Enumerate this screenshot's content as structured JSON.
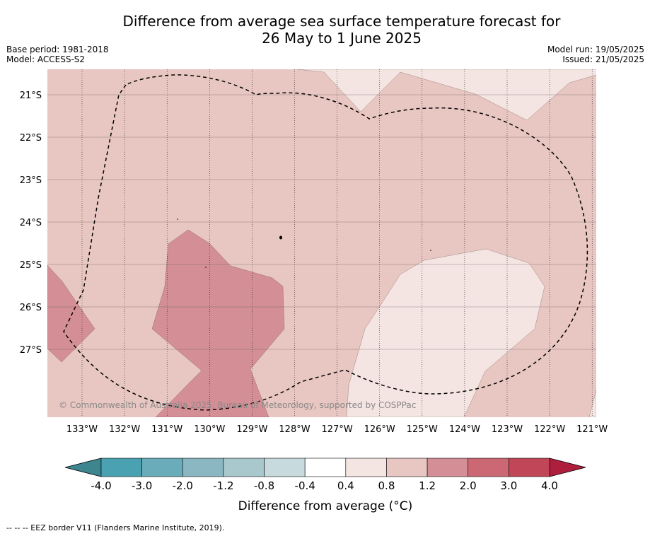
{
  "header": {
    "title_line1": "Difference from average sea surface temperature forecast for",
    "title_line2": "26 May to 1 June 2025",
    "base_period": "Base period: 1981-2018",
    "model": "Model: ACCESS-S2",
    "model_run": "Model run: 19/05/2025",
    "issued": "Issued: 21/05/2025"
  },
  "map": {
    "lat_labels": [
      "21°S",
      "22°S",
      "23°S",
      "24°S",
      "25°S",
      "26°S",
      "27°S"
    ],
    "lon_labels": [
      "133°W",
      "132°W",
      "131°W",
      "130°W",
      "129°W",
      "128°W",
      "127°W",
      "126°W",
      "125°W",
      "124°W",
      "123°W",
      "122°W",
      "121°W"
    ],
    "copyright": "© Commonwealth of Australia 2025, Bureau of Meteorology, supported by COSPPac",
    "fill_colors": {
      "base": "#e8c6c1",
      "light": "#f4e4e2",
      "dark": "#d48f96"
    },
    "eez_line": "dashed"
  },
  "colorbar": {
    "ticks": [
      "-4.0",
      "-3.0",
      "-2.0",
      "-1.2",
      "-0.8",
      "-0.4",
      "0.4",
      "0.8",
      "1.2",
      "2.0",
      "3.0",
      "4.0"
    ],
    "colors": [
      "#4aa1b1",
      "#6aacba",
      "#8bb7c3",
      "#a9c8cd",
      "#c7dade",
      "#ffffff",
      "#f4e4e2",
      "#e8c6c1",
      "#d48f96",
      "#cb6874",
      "#c04658"
    ],
    "low_extend_color": "#3d8690",
    "high_extend_color": "#ad1f3d",
    "label": "Difference from average (°C)"
  },
  "footnote": "--  --  -- EEZ border V11 (Flanders Marine Institute, 2019)."
}
